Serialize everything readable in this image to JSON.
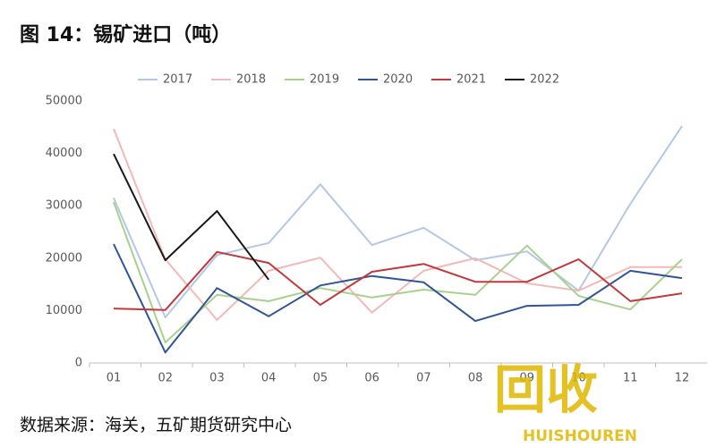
{
  "title": "图 14：锡矿进口（吨）",
  "source": "数据来源：海关，五矿期货研究中心",
  "watermark": {
    "text": "回收",
    "subtext": "HUISHOUREN"
  },
  "chart_data": {
    "type": "line",
    "categories": [
      "01",
      "02",
      "03",
      "04",
      "05",
      "06",
      "07",
      "08",
      "09",
      "10",
      "11",
      "12"
    ],
    "ylim": [
      0,
      50000
    ],
    "yticks": [
      0,
      10000,
      20000,
      30000,
      40000,
      50000
    ],
    "grid": false,
    "legend": "top",
    "series": [
      {
        "name": "2017",
        "color": "#b4c7e7",
        "values": [
          31500,
          8700,
          20600,
          22900,
          34100,
          22500,
          25800,
          19600,
          21300,
          13800,
          30400,
          45200
        ]
      },
      {
        "name": "2018",
        "color": "#f4b8b8",
        "values": [
          44700,
          19800,
          8200,
          17600,
          20100,
          9600,
          17600,
          20000,
          15200,
          13800,
          18300,
          18300
        ]
      },
      {
        "name": "2019",
        "color": "#a9d18e",
        "values": [
          30700,
          3900,
          13000,
          11800,
          14300,
          12500,
          14000,
          13000,
          22400,
          12800,
          10200,
          19800
        ]
      },
      {
        "name": "2020",
        "color": "#2f5597",
        "values": [
          22700,
          2000,
          14300,
          8900,
          14800,
          16600,
          15400,
          8000,
          10900,
          11100,
          17600,
          16200
        ]
      },
      {
        "name": "2021",
        "color": "#c0393b",
        "values": [
          10400,
          10100,
          21200,
          19100,
          11100,
          17400,
          18900,
          15500,
          15500,
          19800,
          11800,
          13300
        ]
      },
      {
        "name": "2022",
        "color": "#1a1a1a",
        "values": [
          39900,
          19600,
          29000,
          15900,
          null,
          null,
          null,
          null,
          null,
          null,
          null,
          null
        ]
      }
    ]
  }
}
